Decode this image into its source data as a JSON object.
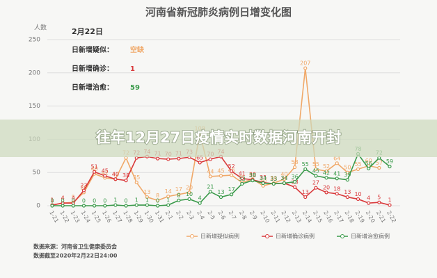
{
  "chart_data": {
    "type": "line",
    "title": "河南省新冠肺炎病例日增变化图",
    "y_label": "人数",
    "categories": [
      "1-21",
      "1-22",
      "1-23",
      "1-24",
      "1-25",
      "1-26",
      "1-27",
      "1-28",
      "1-29",
      "1-30",
      "1-31",
      "2-1",
      "2-2",
      "2-3",
      "2-4",
      "2-5",
      "2-6",
      "2-7",
      "2-8",
      "2-9",
      "2-10",
      "2-11",
      "2-12",
      "2-13",
      "2-14",
      "2-15",
      "2-16",
      "2-17",
      "2-18",
      "2-19",
      "2-20",
      "2-21",
      "2-22"
    ],
    "series": [
      {
        "name": "日新增疑似病例",
        "color": "#f0a868",
        "values": [
          1,
          4,
          5,
          20,
          48,
          42,
          40,
          72,
          35,
          13,
          8,
          14,
          17,
          20,
          109,
          44,
          45,
          46,
          35,
          40,
          30,
          34,
          40,
          58,
          207,
          55,
          52,
          64,
          50,
          55,
          60,
          57,
          null
        ]
      },
      {
        "name": "日新增确诊病例",
        "color": "#d9393b",
        "values": [
          1,
          4,
          4,
          23,
          51,
          45,
          40,
          38,
          72,
          74,
          71,
          70,
          71,
          73,
          65,
          70,
          74,
          52,
          41,
          39,
          35,
          33,
          34,
          28,
          13,
          27,
          20,
          18,
          13,
          10,
          4,
          5,
          1
        ]
      },
      {
        "name": "日新增治愈病例",
        "color": "#3a9a4a",
        "values": [
          0,
          0,
          0,
          0,
          0,
          0,
          1,
          0,
          1,
          1,
          0,
          1,
          8,
          10,
          4,
          21,
          13,
          17,
          33,
          38,
          34,
          33,
          34,
          36,
          55,
          45,
          42,
          41,
          39,
          78,
          56,
          72,
          59
        ]
      }
    ],
    "ylim": [
      0,
      250
    ],
    "yticks": [
      0,
      50,
      100,
      150,
      200,
      250
    ],
    "grid": true,
    "legend": "bottom"
  },
  "info": {
    "date": "2月22日",
    "rows": [
      {
        "label": "日新增疑似：",
        "value": "空缺"
      },
      {
        "label": "日新增确诊：",
        "value": "1"
      },
      {
        "label": "日新增治愈：",
        "value": "59"
      }
    ]
  },
  "source": [
    "数据来源：河南省卫生健康委员会",
    "数据截至2020年2月22日24:00"
  ],
  "banner": "往年12月27日疫情实时数据河南开封"
}
